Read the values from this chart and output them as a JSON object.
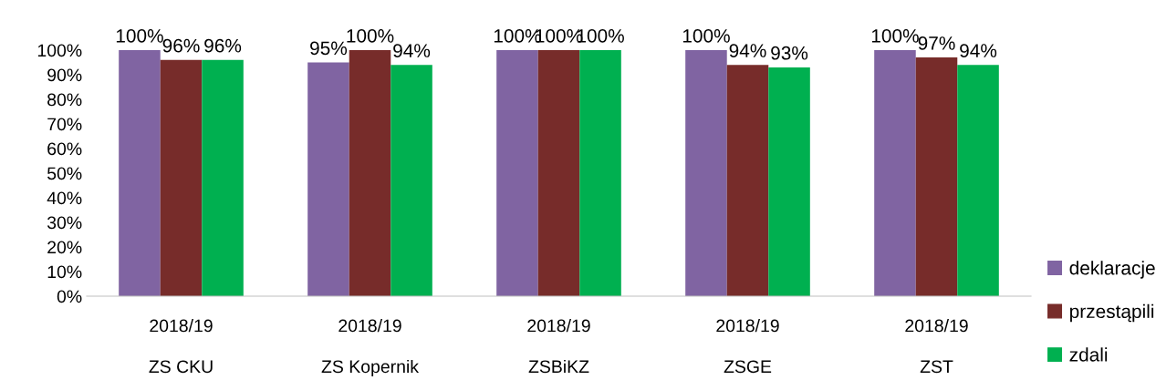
{
  "chart_data": {
    "type": "bar",
    "categories": [
      "2018/19\nZS CKU",
      "2018/19\nZS Kopernik",
      "2018/19\nZSBiKZ",
      "2018/19\nZSGE",
      "2018/19\nZST"
    ],
    "series": [
      {
        "name": "deklaracje",
        "color": "#8064a2",
        "values": [
          100,
          95,
          100,
          100,
          100
        ],
        "value_labels": [
          "100%",
          "95%",
          "100%",
          "100%",
          "100%"
        ]
      },
      {
        "name": "przestąpili",
        "color": "#772c2a",
        "values": [
          96,
          100,
          100,
          94,
          97
        ],
        "value_labels": [
          "96%",
          "100%",
          "100%",
          "94%",
          "97%"
        ]
      },
      {
        "name": "zdali",
        "color": "#00b050",
        "values": [
          96,
          94,
          100,
          93,
          94
        ],
        "value_labels": [
          "96%",
          "94%",
          "100%",
          "93%",
          "94%"
        ]
      }
    ],
    "ylim": [
      0,
      100
    ],
    "yticks": [
      {
        "value": 0,
        "label": "0%"
      },
      {
        "value": 10,
        "label": "10%"
      },
      {
        "value": 20,
        "label": "20%"
      },
      {
        "value": 30,
        "label": "30%"
      },
      {
        "value": 40,
        "label": "40%"
      },
      {
        "value": 50,
        "label": "50%"
      },
      {
        "value": 60,
        "label": "60%"
      },
      {
        "value": 70,
        "label": "70%"
      },
      {
        "value": 80,
        "label": "80%"
      },
      {
        "value": 90,
        "label": "90%"
      },
      {
        "value": 100,
        "label": "100%"
      }
    ],
    "grid": false,
    "legend": "bottom right"
  }
}
